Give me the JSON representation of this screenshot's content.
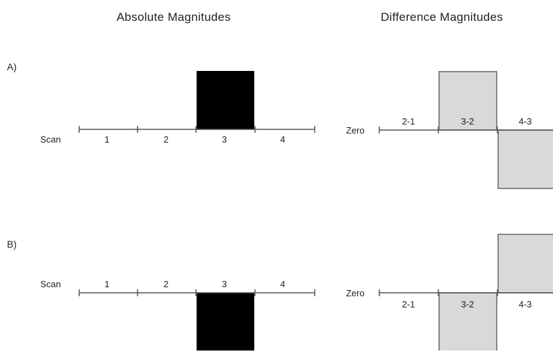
{
  "headings": {
    "absolute": "Absolute Magnitudes",
    "difference": "Difference Magnitudes"
  },
  "axis_labels": {
    "scan": "Scan",
    "zero": "Zero"
  },
  "scan_numbers": [
    "1",
    "2",
    "3",
    "4"
  ],
  "difference_labels": [
    "2-1",
    "3-2",
    "4-3"
  ],
  "rows": [
    {
      "label": "A)",
      "absolute": [
        0,
        0,
        1,
        0
      ],
      "difference": [
        0,
        1,
        -1
      ]
    },
    {
      "label": "B)",
      "absolute": [
        0,
        0,
        -1,
        0
      ],
      "difference": [
        0,
        -1,
        1
      ]
    }
  ],
  "colors": {
    "line": "#555555",
    "absolute_bar": "#000000",
    "difference_bar": "#d9d9d9",
    "difference_bar_border": "#666666"
  }
}
